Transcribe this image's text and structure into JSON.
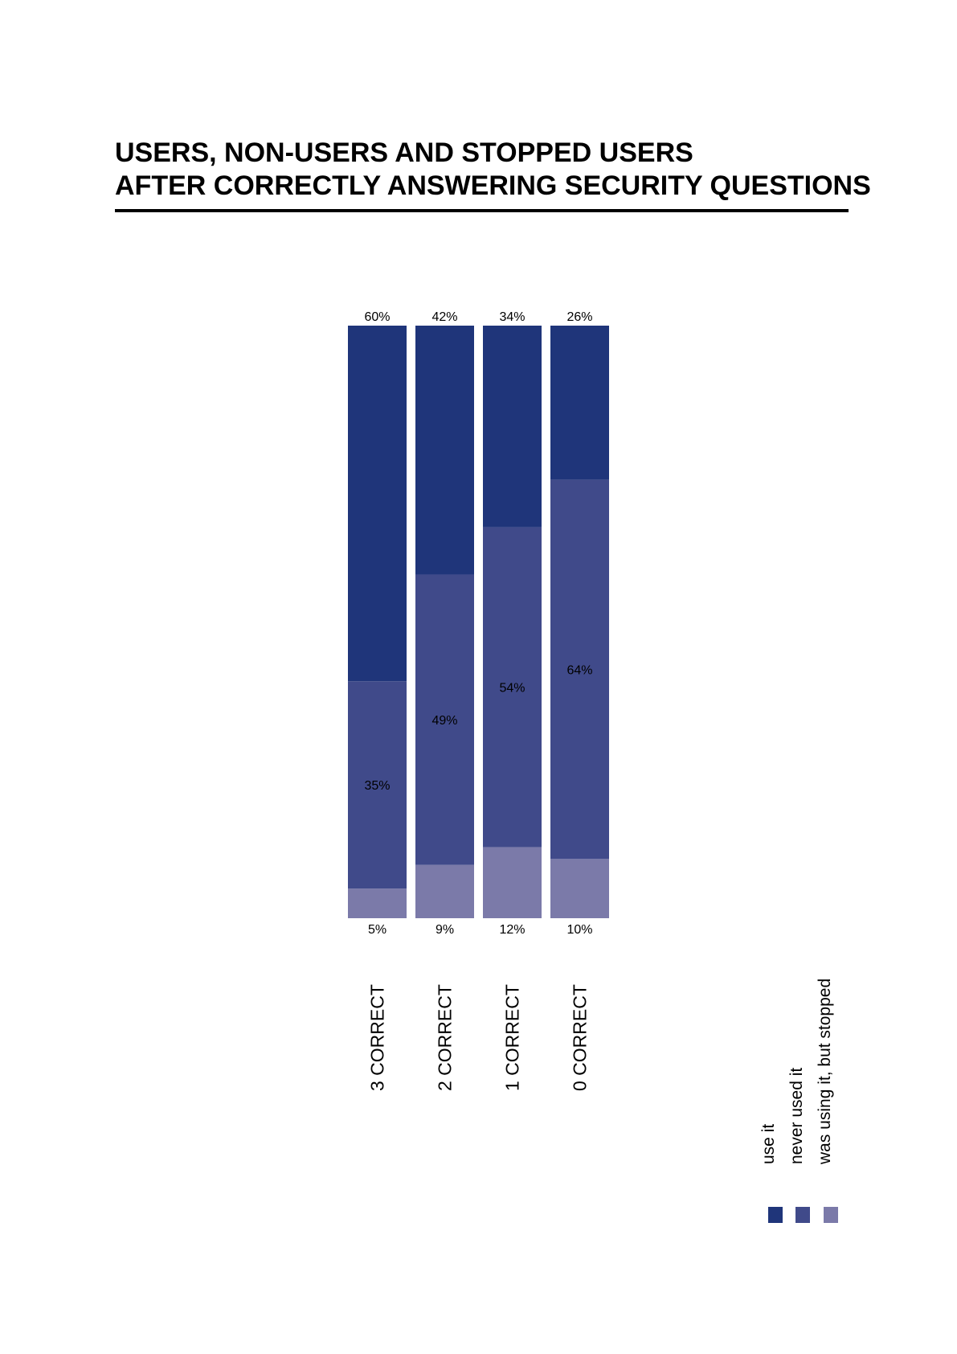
{
  "title": {
    "line1": "USERS, NON-USERS AND STOPPED USERS",
    "line2": "AFTER CORRECTLY ANSWERING SECURITY QUESTIONS"
  },
  "colors": {
    "use_it": "#1f357a",
    "never_used_it": "#404a8a",
    "was_using_it_but_stopped": "#7b7aa9"
  },
  "legend": [
    {
      "label": "use it",
      "color": "#1f357a"
    },
    {
      "label": "never used it",
      "color": "#404a8a"
    },
    {
      "label": "was using it, but stopped",
      "color": "#7b7aa9"
    }
  ],
  "chart_data": {
    "type": "bar",
    "stacked": true,
    "categories": [
      "3 CORRECT",
      "2 CORRECT",
      "1 CORRECT",
      "0 CORRECT"
    ],
    "series": [
      {
        "name": "was using it, but stopped",
        "values": [
          5,
          9,
          12,
          10
        ],
        "labels": [
          "5%",
          "9%",
          "12%",
          "10%"
        ]
      },
      {
        "name": "never used it",
        "values": [
          35,
          49,
          54,
          64
        ],
        "labels": [
          "35%",
          "49%",
          "54%",
          "64%"
        ]
      },
      {
        "name": "use it",
        "values": [
          60,
          42,
          34,
          26
        ],
        "labels": [
          "60%",
          "42%",
          "34%",
          "26%"
        ]
      }
    ],
    "title": "USERS, NON-USERS AND STOPPED USERS AFTER CORRECTLY ANSWERING SECURITY QUESTIONS",
    "xlabel": "",
    "ylabel": "",
    "ylim": [
      0,
      100
    ],
    "grid": false,
    "legend_position": "bottom-right"
  }
}
